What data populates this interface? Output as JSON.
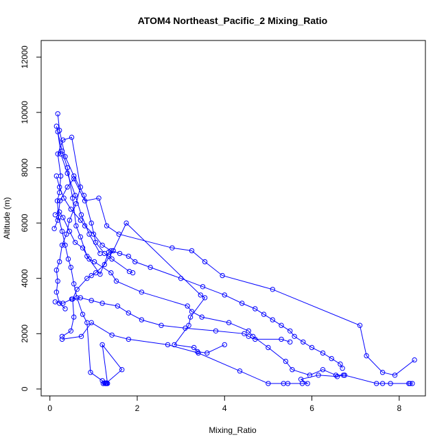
{
  "chart_data": {
    "type": "line",
    "title": "ATOM4 Northeast_Pacific_2 Mixing_Ratio",
    "xlabel": "Mixing_Ratio",
    "ylabel": "Altitude (m)",
    "xlim": [
      -0.2,
      8.6
    ],
    "ylim": [
      -250,
      12600
    ],
    "xticks": [
      0,
      2,
      4,
      6,
      8
    ],
    "yticks": [
      0,
      2000,
      4000,
      6000,
      8000,
      10000,
      12000
    ],
    "series_color": "#0000ff",
    "series": [
      {
        "x": [
          1.27,
          1.3,
          1.22,
          1.3,
          1.25,
          1.32,
          1.2,
          1.65,
          1.28,
          1.2,
          0.93,
          0.85,
          0.75,
          0.62,
          0.55,
          0.48,
          0.42,
          0.35,
          0.28,
          0.2,
          0.17,
          0.22,
          0.25,
          0.18,
          0.3,
          0.5,
          0.7,
          0.6,
          0.45,
          0.38,
          0.28,
          0.22,
          0.15,
          0.18,
          0.15,
          0.22,
          0.35
        ],
        "y": [
          200,
          220,
          200,
          200,
          220,
          200,
          1600,
          700,
          200,
          300,
          600,
          2400,
          2700,
          3300,
          3800,
          4400,
          4700,
          5200,
          5700,
          6200,
          6800,
          7100,
          7700,
          8500,
          9000,
          9100,
          7300,
          6700,
          6100,
          5600,
          5200,
          4600,
          4300,
          3900,
          3500,
          3100,
          2900
        ]
      },
      {
        "x": [
          0.28,
          0.72,
          0.95,
          1.42,
          1.8,
          2.7,
          3.4,
          4.35,
          5.0,
          5.35,
          5.45,
          5.78,
          5.9,
          5.75,
          6.15,
          6.58,
          6.72,
          6.75,
          7.48,
          7.62,
          7.8,
          8.22,
          8.3,
          8.25
        ],
        "y": [
          1800,
          1900,
          2400,
          1950,
          1800,
          1600,
          1300,
          650,
          200,
          200,
          200,
          200,
          200,
          350,
          500,
          450,
          500,
          500,
          200,
          200,
          200,
          200,
          200,
          200
        ]
      },
      {
        "x": [
          0.1,
          0.18,
          0.23,
          0.4,
          0.55,
          0.8,
          1.12,
          1.3,
          1.58,
          2.8,
          3.25,
          3.55,
          3.95,
          5.1,
          7.1,
          7.25,
          7.62,
          7.9,
          8.35
        ],
        "y": [
          5800,
          6100,
          6800,
          7300,
          7600,
          6800,
          6900,
          5900,
          5600,
          5100,
          5000,
          4600,
          4100,
          3600,
          2300,
          1200,
          600,
          500,
          1050
        ]
      },
      {
        "x": [
          0.12,
          0.22,
          0.3,
          0.45,
          0.58,
          0.75,
          0.9,
          1.02,
          1.4,
          1.52,
          2.1,
          3.15,
          3.25,
          3.48,
          4.1,
          4.55,
          4.65,
          5.0,
          5.4,
          5.55,
          5.95,
          6.25,
          6.55,
          6.75
        ],
        "y": [
          6300,
          6400,
          6200,
          5700,
          5300,
          5100,
          4700,
          4600,
          4200,
          3900,
          3500,
          3000,
          2800,
          2600,
          2400,
          2100,
          1900,
          1500,
          1000,
          700,
          500,
          700,
          500,
          500
        ]
      },
      {
        "x": [
          0.15,
          0.22,
          0.32,
          0.48,
          0.7,
          0.8,
          1.0,
          1.2,
          1.4,
          1.6,
          1.8,
          1.95,
          2.3,
          3.0,
          3.5,
          4.0,
          4.4,
          4.7,
          4.9,
          5.1,
          5.3,
          5.5,
          5.6,
          5.8,
          6.0,
          6.25,
          6.45,
          6.65,
          6.7
        ],
        "y": [
          7700,
          7300,
          6900,
          6500,
          6100,
          5900,
          5600,
          5200,
          5000,
          4900,
          4800,
          4600,
          4400,
          4000,
          3700,
          3400,
          3100,
          2900,
          2700,
          2500,
          2300,
          2100,
          1900,
          1700,
          1500,
          1300,
          1100,
          900,
          750
        ]
      },
      {
        "x": [
          0.12,
          0.3,
          0.5,
          0.7,
          0.95,
          1.2,
          1.55,
          1.8,
          2.1,
          2.55,
          3.1,
          3.8,
          4.45,
          4.55,
          4.7,
          5.3,
          5.5
        ],
        "y": [
          3150,
          3100,
          3250,
          3300,
          3200,
          3100,
          3000,
          2750,
          2500,
          2300,
          2200,
          2100,
          2000,
          1900,
          1800,
          1800,
          1700
        ]
      },
      {
        "x": [
          0.15,
          0.28,
          0.4,
          0.52,
          0.6,
          0.7,
          0.85,
          1.15,
          1.35,
          1.45,
          1.75,
          3.45,
          3.55,
          3.22,
          3.18,
          2.85,
          3.3,
          3.38,
          3.6,
          4.0
        ],
        "y": [
          9500,
          8600,
          8000,
          6900,
          5900,
          5500,
          4800,
          4150,
          4950,
          5000,
          6000,
          3400,
          3300,
          2600,
          2300,
          1600,
          1500,
          1350,
          1300,
          1600
        ]
      },
      {
        "x": [
          0.18,
          0.22,
          0.35,
          0.55,
          0.78,
          0.95,
          1.05,
          1.25,
          1.35,
          1.42,
          1.82,
          1.9
        ],
        "y": [
          9950,
          9350,
          8400,
          7700,
          7000,
          6000,
          5300,
          4900,
          4800,
          4700,
          4250,
          4200
        ]
      },
      {
        "x": [
          0.18,
          0.25,
          0.4,
          0.58,
          0.72,
          0.9,
          1.15
        ],
        "y": [
          9300,
          8500,
          7800,
          7000,
          6300,
          5600,
          4900
        ]
      },
      {
        "x": [
          0.28,
          0.48,
          0.55,
          0.52,
          0.62,
          0.85,
          0.95,
          1.05,
          1.25,
          1.45
        ],
        "y": [
          1900,
          2100,
          2600,
          3250,
          3600,
          4000,
          4100,
          4200,
          4500,
          5000
        ]
      }
    ]
  }
}
